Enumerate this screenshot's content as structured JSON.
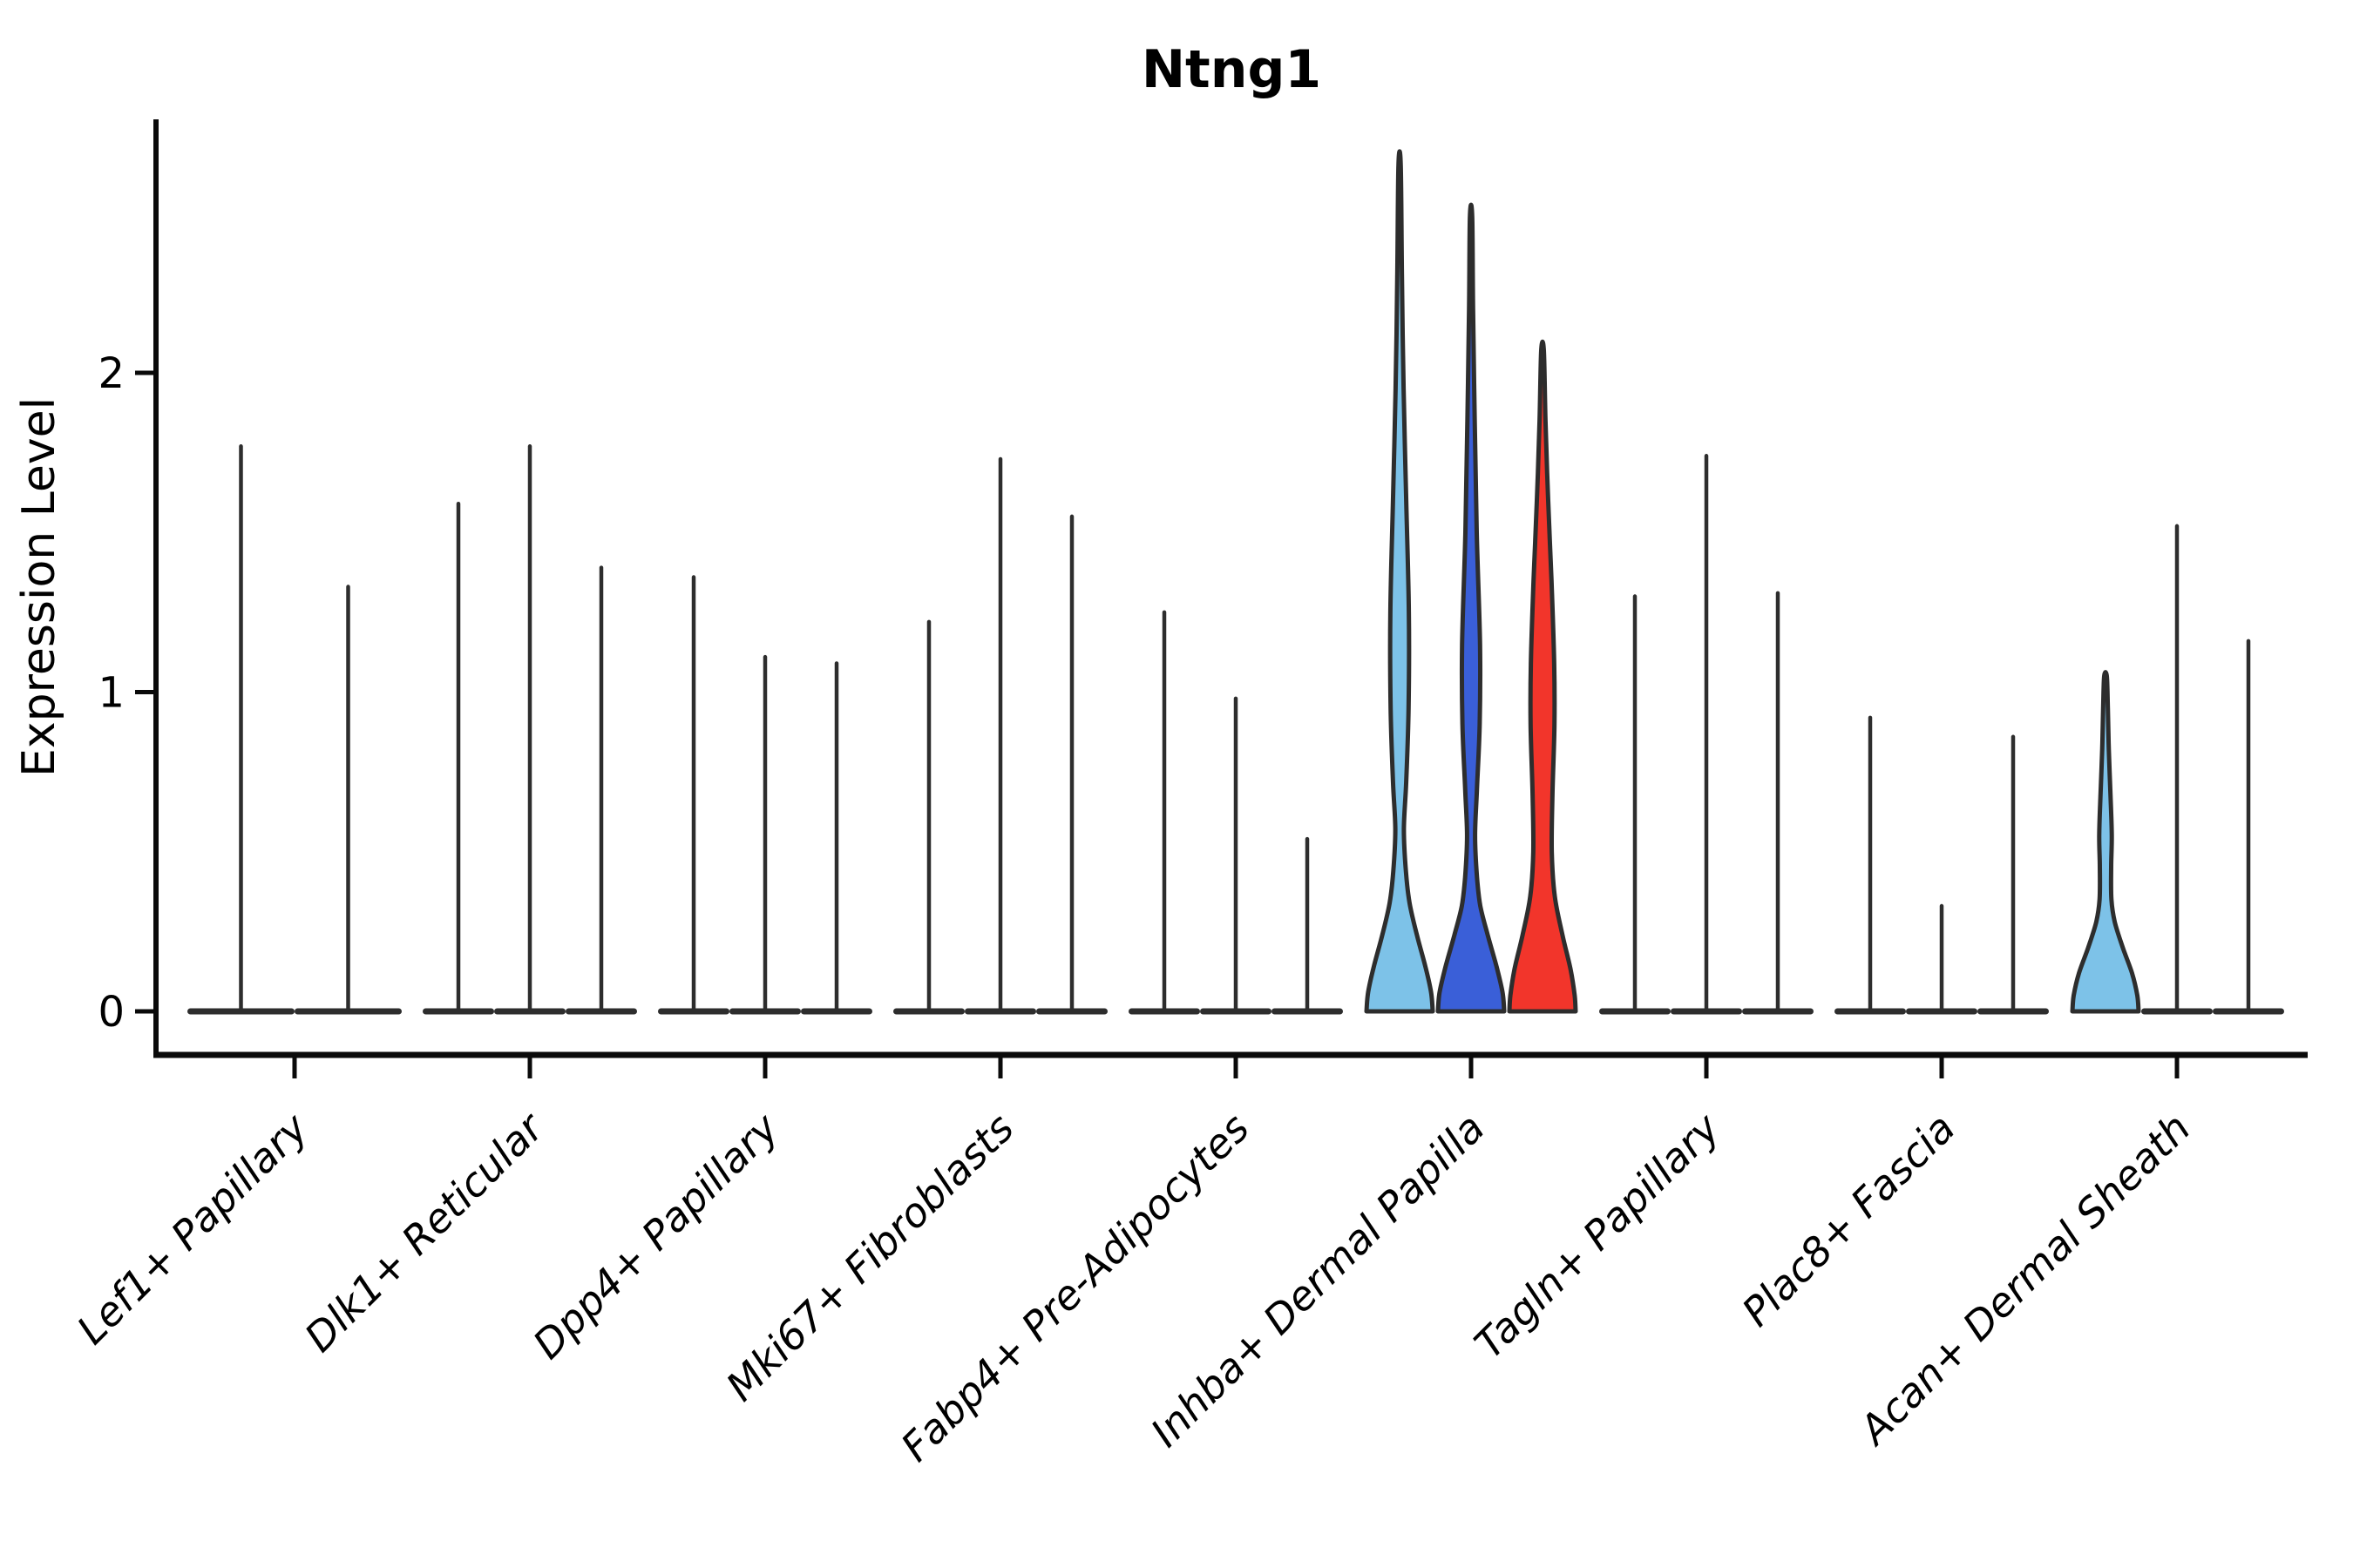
{
  "title": "Ntng1",
  "axes": {
    "ylabel": "Expression Level",
    "ytick_labels": [
      "0",
      "1",
      "2"
    ]
  },
  "chart_data": {
    "type": "violin",
    "title": "Ntng1",
    "xlabel": "",
    "ylabel": "Expression Level",
    "yticks": [
      0,
      1,
      2
    ],
    "ylim": [
      0,
      2.79
    ],
    "grid": false,
    "legend": "none",
    "categories": [
      "Lef1+ Papillary",
      "Dlk1+ Reticular",
      "Dpp4+ Papillary",
      "Mki67+ Fibroblasts",
      "Fabp4+ Pre-Adipocytes",
      "Inhba+ Dermal Papilla",
      "Tagln+ Papillary",
      "Plac8+ Fascia",
      "Acan+ Dermal Sheath"
    ],
    "groups": [
      {
        "category": "Lef1+ Papillary",
        "violins": [
          {
            "peak": 1.77
          },
          {
            "peak": 1.33
          }
        ]
      },
      {
        "category": "Dlk1+ Reticular",
        "violins": [
          {
            "peak": 1.59
          },
          {
            "peak": 1.77
          },
          {
            "peak": 1.39
          }
        ]
      },
      {
        "category": "Dpp4+ Papillary",
        "violins": [
          {
            "peak": 1.36
          },
          {
            "peak": 1.11
          },
          {
            "peak": 1.09
          }
        ]
      },
      {
        "category": "Mki67+ Fibroblasts",
        "violins": [
          {
            "peak": 1.22
          },
          {
            "peak": 1.73
          },
          {
            "peak": 1.55
          }
        ]
      },
      {
        "category": "Fabp4+ Pre-Adipocytes",
        "violins": [
          {
            "peak": 1.25
          },
          {
            "peak": 0.98
          },
          {
            "peak": 0.54
          }
        ]
      },
      {
        "category": "Inhba+ Dermal Papilla",
        "violins": [
          {
            "peak": 2.65,
            "fill": "#7dc2e8",
            "profile": [
              [
                0,
                1
              ],
              [
                0.06,
                0.95
              ],
              [
                0.14,
                0.78
              ],
              [
                0.24,
                0.52
              ],
              [
                0.34,
                0.3
              ],
              [
                0.44,
                0.19
              ],
              [
                0.57,
                0.13
              ],
              [
                0.72,
                0.2
              ],
              [
                0.95,
                0.27
              ],
              [
                1.25,
                0.28
              ],
              [
                1.6,
                0.2
              ],
              [
                1.95,
                0.12
              ],
              [
                2.3,
                0.07
              ],
              [
                2.65,
                0.035
              ]
            ]
          },
          {
            "peak": 2.49,
            "fill": "#3a5fd8",
            "profile": [
              [
                0,
                1
              ],
              [
                0.06,
                0.95
              ],
              [
                0.14,
                0.77
              ],
              [
                0.24,
                0.5
              ],
              [
                0.33,
                0.28
              ],
              [
                0.42,
                0.18
              ],
              [
                0.55,
                0.12
              ],
              [
                0.7,
                0.18
              ],
              [
                0.9,
                0.26
              ],
              [
                1.15,
                0.27
              ],
              [
                1.5,
                0.17
              ],
              [
                1.85,
                0.11
              ],
              [
                2.2,
                0.06
              ],
              [
                2.49,
                0.035
              ]
            ]
          },
          {
            "peak": 2.07,
            "fill": "#f2352b",
            "profile": [
              [
                0,
                1
              ],
              [
                0.05,
                0.97
              ],
              [
                0.13,
                0.85
              ],
              [
                0.24,
                0.6
              ],
              [
                0.36,
                0.37
              ],
              [
                0.5,
                0.28
              ],
              [
                0.68,
                0.3
              ],
              [
                0.9,
                0.36
              ],
              [
                1.1,
                0.35
              ],
              [
                1.35,
                0.27
              ],
              [
                1.6,
                0.17
              ],
              [
                1.85,
                0.09
              ],
              [
                2.07,
                0.04
              ]
            ]
          }
        ]
      },
      {
        "category": "Tagln+ Papillary",
        "violins": [
          {
            "peak": 1.3
          },
          {
            "peak": 1.74
          },
          {
            "peak": 1.31
          }
        ]
      },
      {
        "category": "Plac8+ Fascia",
        "violins": [
          {
            "peak": 0.92
          },
          {
            "peak": 0.33
          },
          {
            "peak": 0.86
          }
        ]
      },
      {
        "category": "Acan+ Dermal Sheath",
        "violins": [
          {
            "peak": 1.05,
            "fill": "#7dc2e8",
            "profile": [
              [
                0,
                1
              ],
              [
                0.05,
                0.96
              ],
              [
                0.12,
                0.8
              ],
              [
                0.2,
                0.52
              ],
              [
                0.28,
                0.28
              ],
              [
                0.35,
                0.18
              ],
              [
                0.45,
                0.17
              ],
              [
                0.55,
                0.19
              ],
              [
                0.68,
                0.15
              ],
              [
                0.82,
                0.1
              ],
              [
                0.95,
                0.07
              ],
              [
                1.05,
                0.04
              ]
            ]
          },
          {
            "peak": 1.52
          },
          {
            "peak": 1.16
          }
        ]
      }
    ],
    "colors": {
      "violin_outline": "#2d2d2d",
      "spike": "#2d2d2d",
      "axis": "#0a0a0a",
      "highlight_light_blue": "#7dc2e8",
      "highlight_dark_blue": "#3a5fd8",
      "highlight_red": "#f2352b",
      "background": "#ffffff"
    }
  }
}
